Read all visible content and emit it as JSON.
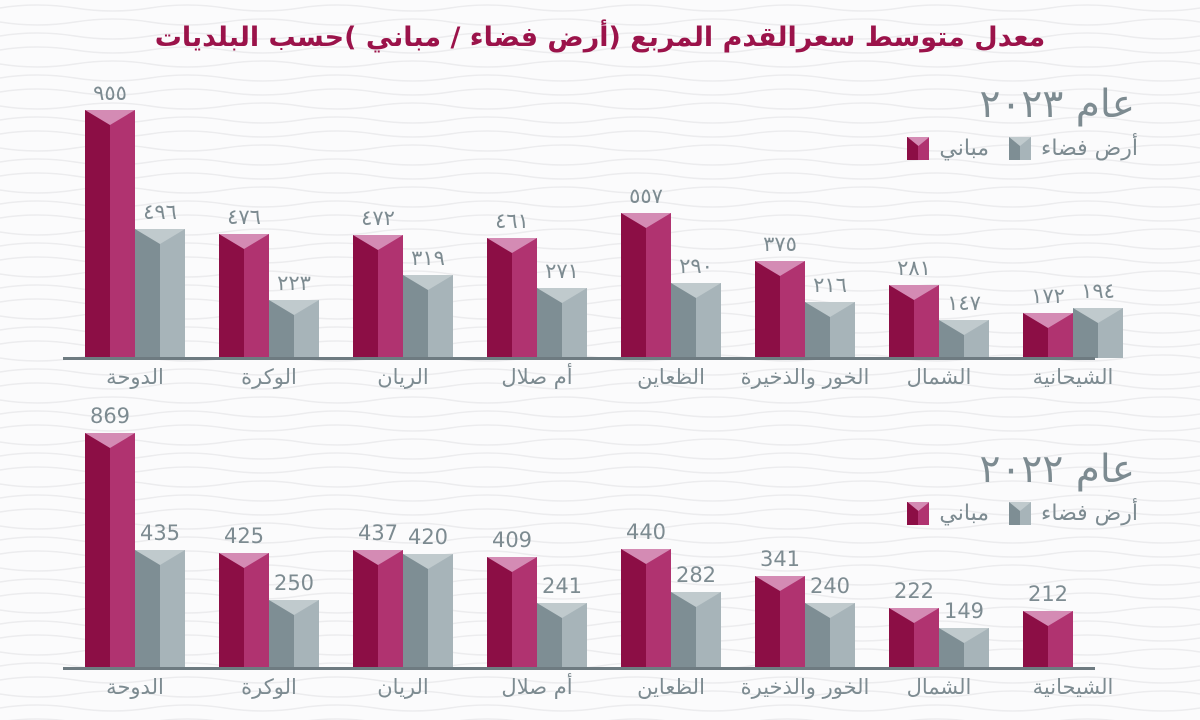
{
  "page": {
    "title": "معدل متوسط سعرالقدم المربع (أرض فضاء / مباني )حسب البلديات"
  },
  "colors": {
    "background": "#fbfbfc",
    "wave_line": "#ececee",
    "title": "#9b134a",
    "text": "#7d8b91",
    "axis": "#6e7b81",
    "buildings_dark": "#8c0e45",
    "buildings_light": "#b03370",
    "buildings_cap": "#d48bb4",
    "land_dark": "#7e8e94",
    "land_light": "#a7b4b9",
    "land_cap": "#c0cacd"
  },
  "chart_data": [
    {
      "type": "bar",
      "title": "عام ٢٠٢٣",
      "legend": [
        {
          "label": "أرض فضاء",
          "series": "land"
        },
        {
          "label": "مباني",
          "series": "buildings"
        }
      ],
      "categories": [
        "الدوحة",
        "الوكرة",
        "الريان",
        "أم صلال",
        "الظعاين",
        "الخور والذخيرة",
        "الشمال",
        "الشيحانية"
      ],
      "series": [
        {
          "name": "مباني",
          "key": "buildings",
          "values": [
            955,
            476,
            472,
            461,
            557,
            375,
            281,
            172
          ],
          "labels": [
            "٩٥٥",
            "٤٧٦",
            "٤٧٢",
            "٤٦١",
            "٥٥٧",
            "٣٧٥",
            "٢٨١",
            "١٧٢"
          ]
        },
        {
          "name": "أرض فضاء",
          "key": "land",
          "values": [
            496,
            223,
            319,
            271,
            290,
            216,
            147,
            194
          ],
          "labels": [
            "٤٩٦",
            "٢٢٣",
            "٣١٩",
            "٢٧١",
            "٢٩٠",
            "٢١٦",
            "١٤٧",
            "١٩٤"
          ]
        }
      ],
      "ylim": [
        0,
        955
      ],
      "grid": false,
      "legend_position": "top-right"
    },
    {
      "type": "bar",
      "title": "عام ٢٠٢٢",
      "legend": [
        {
          "label": "أرض فضاء",
          "series": "land"
        },
        {
          "label": "مباني",
          "series": "buildings"
        }
      ],
      "categories": [
        "الدوحة",
        "الوكرة",
        "الريان",
        "أم صلال",
        "الظعاين",
        "الخور والذخيرة",
        "الشمال",
        "الشيحانية"
      ],
      "series": [
        {
          "name": "مباني",
          "key": "buildings",
          "values": [
            869,
            425,
            437,
            409,
            440,
            341,
            222,
            212
          ],
          "labels": [
            "869",
            "425",
            "437",
            "409",
            "440",
            "341",
            "222",
            "212"
          ]
        },
        {
          "name": "أرض فضاء",
          "key": "land",
          "values": [
            435,
            250,
            420,
            241,
            282,
            240,
            149,
            null
          ],
          "labels": [
            "435",
            "250",
            "420",
            "241",
            "282",
            "240",
            "149",
            null
          ]
        }
      ],
      "ylim": [
        0,
        869
      ],
      "grid": false,
      "legend_position": "top-right"
    }
  ]
}
